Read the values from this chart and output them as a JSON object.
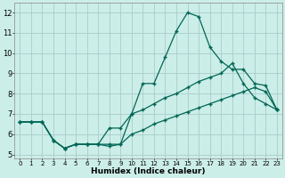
{
  "xlabel": "Humidex (Indice chaleur)",
  "background_color": "#cceee8",
  "grid_color": "#aacccc",
  "line_color": "#006655",
  "xlim": [
    -0.5,
    23.5
  ],
  "ylim": [
    4.8,
    12.5
  ],
  "xticks": [
    0,
    1,
    2,
    3,
    4,
    5,
    6,
    7,
    8,
    9,
    10,
    11,
    12,
    13,
    14,
    15,
    16,
    17,
    18,
    19,
    20,
    21,
    22,
    23
  ],
  "yticks": [
    5,
    6,
    7,
    8,
    9,
    10,
    11,
    12
  ],
  "line1_x": [
    0,
    1,
    2,
    3,
    4,
    5,
    6,
    7,
    8,
    9,
    10,
    11,
    12,
    13,
    14,
    15,
    16,
    17,
    18,
    19,
    20,
    21,
    22,
    23
  ],
  "line1_y": [
    6.6,
    6.6,
    6.6,
    5.7,
    5.3,
    5.5,
    5.5,
    5.5,
    5.5,
    5.5,
    7.0,
    8.5,
    8.5,
    9.8,
    11.1,
    12.0,
    11.8,
    10.3,
    9.6,
    9.2,
    9.2,
    8.5,
    8.4,
    7.2
  ],
  "line2_x": [
    0,
    1,
    2,
    3,
    4,
    5,
    6,
    7,
    8,
    9,
    10,
    11,
    12,
    13,
    14,
    15,
    16,
    17,
    18,
    19,
    20,
    21,
    22,
    23
  ],
  "line2_y": [
    6.6,
    6.6,
    6.6,
    5.7,
    5.3,
    5.5,
    5.5,
    5.5,
    6.3,
    6.3,
    7.0,
    7.2,
    7.5,
    7.8,
    8.0,
    8.3,
    8.6,
    8.8,
    9.0,
    9.5,
    8.5,
    7.8,
    7.5,
    7.2
  ],
  "line3_x": [
    0,
    1,
    2,
    3,
    4,
    5,
    6,
    7,
    8,
    9,
    10,
    11,
    12,
    13,
    14,
    15,
    16,
    17,
    18,
    19,
    20,
    21,
    22,
    23
  ],
  "line3_y": [
    6.6,
    6.6,
    6.6,
    5.7,
    5.3,
    5.5,
    5.5,
    5.5,
    5.4,
    5.5,
    6.0,
    6.2,
    6.5,
    6.7,
    6.9,
    7.1,
    7.3,
    7.5,
    7.7,
    7.9,
    8.1,
    8.3,
    8.1,
    7.2
  ]
}
